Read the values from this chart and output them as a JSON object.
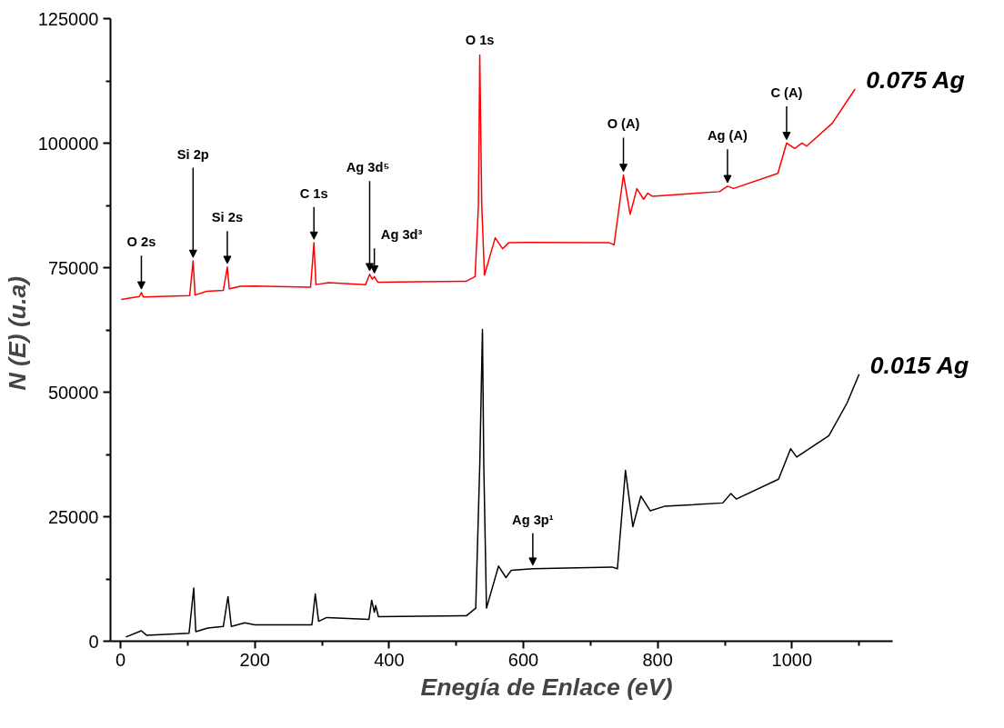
{
  "chart_data": {
    "type": "line",
    "xlabel": "Enegía de Enlace (eV)",
    "ylabel": "N (E)  (u.a)",
    "xlim": [
      -15,
      1150
    ],
    "ylim": [
      0,
      125000
    ],
    "xticks": [
      0,
      {
        "value": 100,
        "label": null
      },
      200,
      {
        "value": 300,
        "label": null
      },
      400,
      {
        "value": 500,
        "label": null
      },
      600,
      {
        "value": 700,
        "label": null
      },
      800,
      {
        "value": 900,
        "label": null
      },
      1000,
      {
        "value": 1100,
        "label": null
      }
    ],
    "yticks": [
      0,
      {
        "value": 12500,
        "label": null
      },
      25000,
      {
        "value": 37500,
        "label": null
      },
      50000,
      {
        "value": 62500,
        "label": null
      },
      75000,
      {
        "value": 87500,
        "label": null
      },
      100000,
      {
        "value": 112500,
        "label": null
      },
      125000
    ],
    "grid": false,
    "marker": "none",
    "line_style": "solid",
    "series": [
      {
        "name": "0.075 Ag",
        "color": "#ff0000",
        "x": [
          1,
          28,
          31,
          34,
          103,
          108,
          111,
          128,
          153,
          159,
          162,
          178,
          200,
          283,
          288,
          291,
          310,
          365,
          371,
          375,
          378,
          383,
          515,
          528,
          533,
          535,
          538,
          542,
          558,
          569,
          578,
          606,
          728,
          735,
          749,
          759,
          769,
          779,
          785,
          792,
          892,
          904,
          913,
          979,
          992,
          1004,
          1015,
          1022,
          1060,
          1094
        ],
        "values": [
          68600,
          69200,
          70000,
          69100,
          69400,
          76360,
          69500,
          70250,
          70430,
          75130,
          70750,
          71240,
          71300,
          71060,
          80000,
          71600,
          71970,
          71600,
          73670,
          72700,
          73200,
          72100,
          72270,
          73200,
          87500,
          117700,
          87500,
          73500,
          81000,
          78800,
          80000,
          80050,
          80000,
          79580,
          93600,
          85690,
          90870,
          88730,
          89950,
          89340,
          90260,
          91360,
          90900,
          93920,
          100010,
          98910,
          100010,
          99400,
          104000,
          110860
        ]
      },
      {
        "name": "0.015 Ag",
        "color": "#000000",
        "x": [
          8,
          31,
          39,
          102,
          109,
          112,
          130,
          153,
          160,
          165,
          185,
          200,
          285,
          290,
          295,
          307,
          370,
          374,
          378,
          380,
          384,
          515,
          529,
          535,
          539,
          541,
          545,
          563,
          574,
          582,
          614,
          732,
          740,
          752,
          763,
          775,
          789,
          810,
          897,
          909,
          917,
          980,
          998,
          1007,
          1055,
          1082,
          1100
        ],
        "values": [
          840,
          2100,
          1170,
          1590,
          10660,
          1900,
          2630,
          2960,
          8960,
          2960,
          3700,
          3280,
          3280,
          9490,
          4000,
          4760,
          4400,
          8230,
          5820,
          7170,
          4920,
          5100,
          6640,
          35350,
          62590,
          35350,
          6640,
          15090,
          12770,
          14250,
          14560,
          14890,
          14560,
          34300,
          23000,
          29140,
          26170,
          27080,
          27760,
          29650,
          28540,
          32520,
          38630,
          36970,
          41260,
          47810,
          53600
        ]
      }
    ],
    "annotations": [
      {
        "text": "O 2s",
        "x": 31,
        "y": 70000
      },
      {
        "text": "Si 2p",
        "x": 108,
        "y": 76360
      },
      {
        "text": "Si 2s",
        "x": 159,
        "y": 75130
      },
      {
        "text": "C 1s",
        "x": 288,
        "y": 80000
      },
      {
        "text": "Ag 3d⁵",
        "x": 371,
        "y": 73670
      },
      {
        "text": "Ag 3d³",
        "x": 378,
        "y": 73200
      },
      {
        "text": "O 1s",
        "x": 535,
        "y": 117700
      },
      {
        "text": "O (A)",
        "x": 749,
        "y": 93600
      },
      {
        "text": "Ag (A)",
        "x": 904,
        "y": 91360
      },
      {
        "text": "C (A)",
        "x": 992,
        "y": 100010
      },
      {
        "text": "Ag 3p¹",
        "x": 614,
        "y": 14560
      }
    ]
  }
}
